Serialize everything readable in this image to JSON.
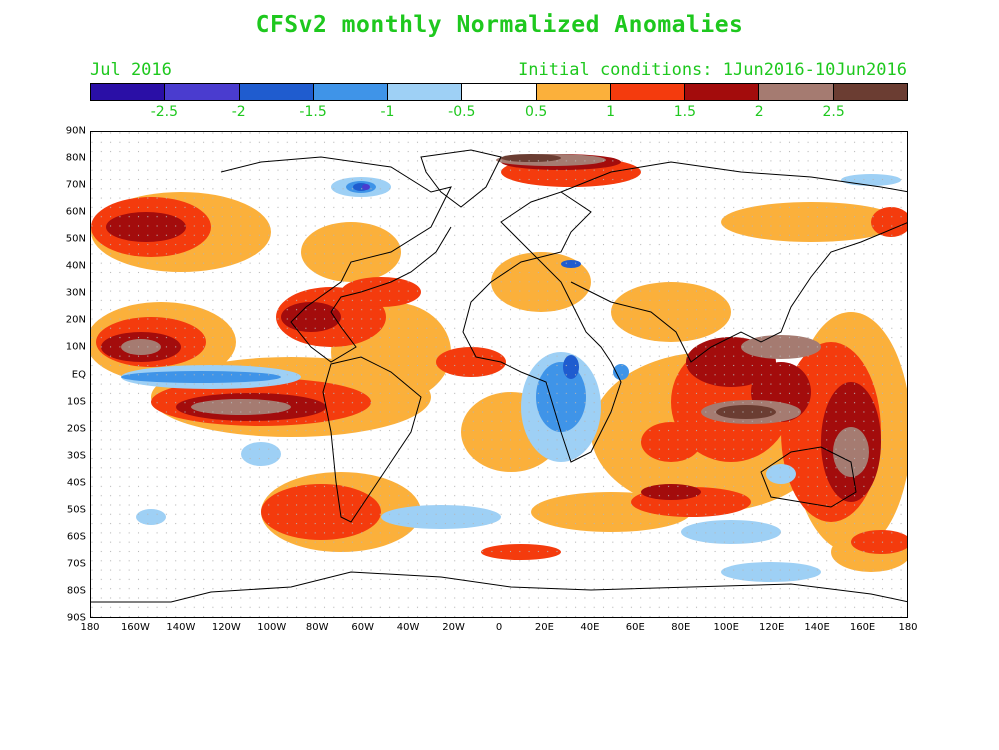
{
  "title": "CFSv2 monthly Normalized Anomalies",
  "left_subtitle": "Jul 2016",
  "right_subtitle": "Initial conditions: 1Jun2016-10Jun2016",
  "colorbar": {
    "colors": [
      "#2a0fa6",
      "#4a3ccf",
      "#1f5ccf",
      "#3f94e8",
      "#9ed0f5",
      "#ffffff",
      "#fbb03b",
      "#f43b0d",
      "#a30c0c",
      "#a57b71",
      "#6b3d32"
    ],
    "labels": [
      "-2.5",
      "-2",
      "-1.5",
      "-1",
      "-0.5",
      "0.5",
      "1",
      "1.5",
      "2",
      "2.5"
    ]
  },
  "axes": {
    "lat_labels": [
      "90N",
      "80N",
      "70N",
      "60N",
      "50N",
      "40N",
      "30N",
      "20N",
      "10N",
      "EQ",
      "10S",
      "20S",
      "30S",
      "40S",
      "50S",
      "60S",
      "70S",
      "80S",
      "90S"
    ],
    "lon_labels": [
      "180",
      "160W",
      "140W",
      "120W",
      "100W",
      "80W",
      "60W",
      "40W",
      "20W",
      "0",
      "20E",
      "40E",
      "60E",
      "80E",
      "100E",
      "120E",
      "140E",
      "160E",
      "180"
    ]
  }
}
